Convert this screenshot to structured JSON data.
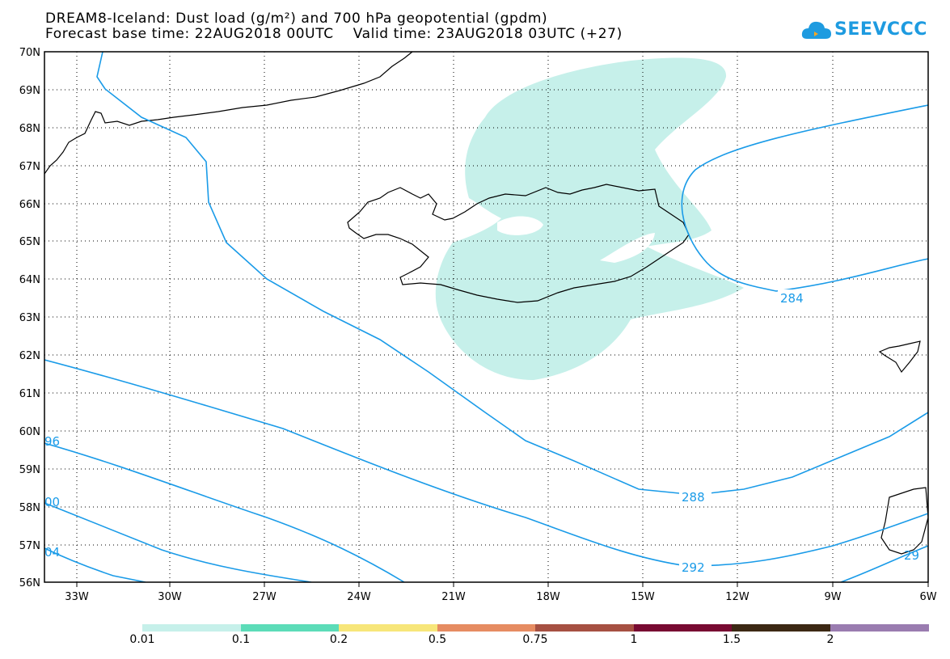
{
  "header": {
    "line1": "DREAM8-Iceland: Dust load (g/m²) and 700 hPa geopotential (gpdm)",
    "line2": "Forecast base time: 22AUG2018 00UTC    Valid time: 23AUG2018 03UTC (+27)"
  },
  "logo": {
    "text": "SEEVCCC",
    "icon": "cloud-icon",
    "color": "#1e9be0"
  },
  "axes": {
    "lat_labels": [
      "70N",
      "69N",
      "68N",
      "67N",
      "66N",
      "65N",
      "64N",
      "63N",
      "62N",
      "61N",
      "60N",
      "59N",
      "58N",
      "57N",
      "56N"
    ],
    "lon_labels": [
      "33W",
      "30W",
      "27W",
      "24W",
      "21W",
      "18W",
      "15W",
      "12W",
      "9W",
      "6W"
    ]
  },
  "contours": {
    "color": "#1a9be8",
    "labels": [
      "284",
      "288",
      "292",
      "96",
      "00",
      "04",
      "29"
    ]
  },
  "dust_fill_color": "#c6f0ea",
  "colorbar": {
    "colors": [
      "#c6f0ea",
      "#5cdcb8",
      "#f7e67a",
      "#e68c62",
      "#a65042",
      "#780a32",
      "#3c2814",
      "#9a7cb0"
    ],
    "ticks": [
      "0.01",
      "0.1",
      "0.2",
      "0.5",
      "0.75",
      "1",
      "1.5",
      "2"
    ]
  }
}
